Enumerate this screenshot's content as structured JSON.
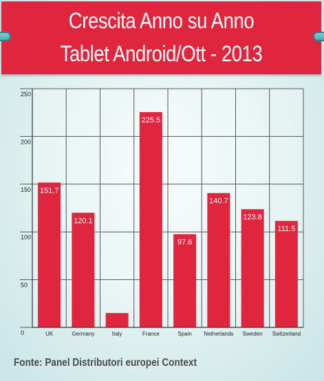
{
  "header": {
    "title_line1": "Crescita Anno su Anno",
    "title_line2": "Tablet Android/Ott - 2013"
  },
  "footer": {
    "source": "Fonte: Panel Distributori europei Context"
  },
  "colors": {
    "bar": "#e0263f",
    "banner": "#e0263f",
    "grid": "#555555"
  },
  "chart_data": {
    "type": "bar",
    "title": "Crescita Anno su Anno Tablet Android/Ott - 2013",
    "categories": [
      "UK",
      "Germany",
      "Italy",
      "France",
      "Spain",
      "Netherlands",
      "Sweden",
      "Switzerland"
    ],
    "values": [
      151.7,
      120.1,
      15,
      225.5,
      97.6,
      140.7,
      123.8,
      111.5
    ],
    "labels": [
      "151.7",
      "120.1",
      "",
      "225.5",
      "97.6",
      "140.7",
      "123.8",
      "111.5"
    ],
    "yticks": [
      "0",
      "50",
      "100",
      "150",
      "200",
      "250"
    ],
    "ylim": [
      0,
      250
    ],
    "grid": true,
    "legend": "none"
  }
}
